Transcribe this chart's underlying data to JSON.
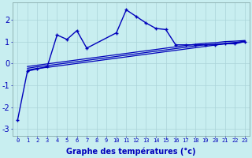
{
  "xlabel": "Graphe des températures (°c)",
  "bg_color": "#c8eef0",
  "line_color": "#0000bb",
  "xlim": [
    -0.5,
    23.5
  ],
  "ylim": [
    -3.3,
    2.8
  ],
  "xticks": [
    0,
    1,
    2,
    3,
    4,
    5,
    6,
    7,
    8,
    9,
    10,
    11,
    12,
    13,
    14,
    15,
    16,
    17,
    18,
    19,
    20,
    21,
    22,
    23
  ],
  "yticks": [
    -3,
    -2,
    -1,
    0,
    1,
    2
  ],
  "main_x": [
    0,
    1,
    2,
    3,
    4,
    5,
    6,
    7,
    10,
    11,
    12,
    13,
    14,
    15,
    16,
    17,
    18,
    19,
    20,
    21,
    22,
    23
  ],
  "main_y": [
    -2.6,
    -0.35,
    -0.25,
    -0.15,
    1.3,
    1.1,
    1.5,
    0.7,
    1.4,
    2.45,
    2.15,
    1.85,
    1.6,
    1.55,
    0.85,
    0.85,
    0.85,
    0.85,
    0.85,
    0.9,
    0.9,
    1.0
  ],
  "ref1_x": [
    1,
    2,
    3,
    4,
    5,
    6,
    7,
    8,
    9,
    10,
    11,
    12,
    13,
    14,
    15,
    16,
    17,
    18,
    19,
    20,
    21,
    22,
    23
  ],
  "ref1_y": [
    -0.3,
    -0.22,
    -0.18,
    -0.12,
    -0.06,
    0.0,
    0.06,
    0.12,
    0.18,
    0.24,
    0.3,
    0.36,
    0.42,
    0.48,
    0.54,
    0.6,
    0.66,
    0.72,
    0.78,
    0.84,
    0.9,
    0.93,
    1.0
  ],
  "ref2_x": [
    1,
    2,
    3,
    4,
    5,
    6,
    7,
    8,
    9,
    10,
    11,
    12,
    13,
    14,
    15,
    16,
    17,
    18,
    19,
    20,
    21,
    22,
    23
  ],
  "ref2_y": [
    -0.22,
    -0.15,
    -0.1,
    -0.04,
    0.02,
    0.08,
    0.14,
    0.2,
    0.26,
    0.32,
    0.38,
    0.44,
    0.5,
    0.56,
    0.62,
    0.68,
    0.74,
    0.8,
    0.86,
    0.88,
    0.92,
    0.96,
    1.02
  ],
  "ref3_x": [
    1,
    2,
    3,
    4,
    5,
    6,
    7,
    8,
    9,
    10,
    11,
    12,
    13,
    14,
    15,
    16,
    17,
    18,
    19,
    20,
    21,
    22,
    23
  ],
  "ref3_y": [
    -0.14,
    -0.08,
    -0.02,
    0.04,
    0.1,
    0.16,
    0.22,
    0.28,
    0.34,
    0.4,
    0.46,
    0.52,
    0.58,
    0.64,
    0.7,
    0.76,
    0.82,
    0.88,
    0.92,
    0.95,
    1.0,
    1.02,
    1.05
  ],
  "grid_color": "#aad4d8",
  "xlabel_fontsize": 7,
  "xtick_fontsize": 5,
  "ytick_fontsize": 7
}
